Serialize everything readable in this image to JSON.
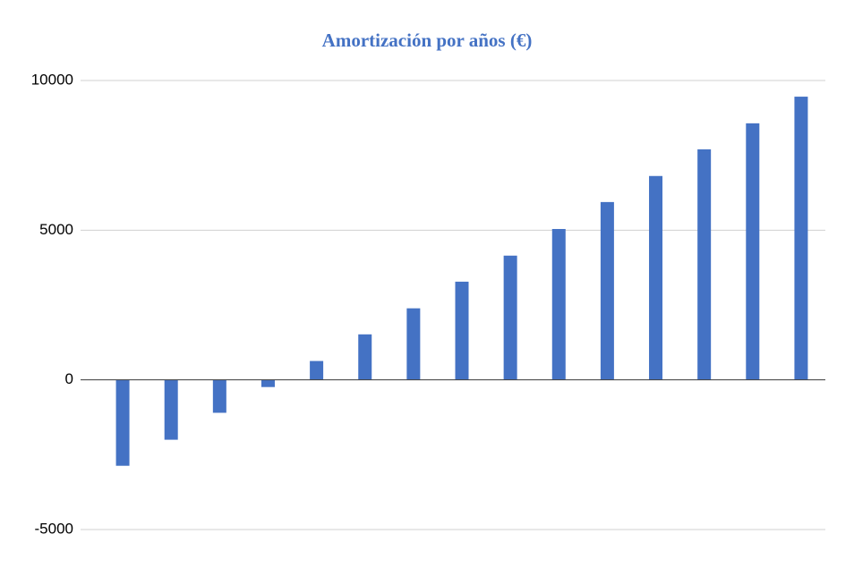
{
  "chart_data": {
    "type": "bar",
    "title": "Amortización por años (€)",
    "categories": [
      null,
      null,
      null,
      null,
      null,
      null,
      null,
      null,
      null,
      null,
      null,
      null,
      null,
      null,
      null
    ],
    "values": [
      -2870,
      -2000,
      -1100,
      -240,
      630,
      1520,
      2390,
      3280,
      4150,
      5040,
      5940,
      6810,
      7700,
      8570,
      9460
    ],
    "color": "#4472c4",
    "ylim": [
      -5000,
      10000
    ],
    "yticks": [
      -5000,
      0,
      5000,
      10000
    ],
    "grid": true
  }
}
